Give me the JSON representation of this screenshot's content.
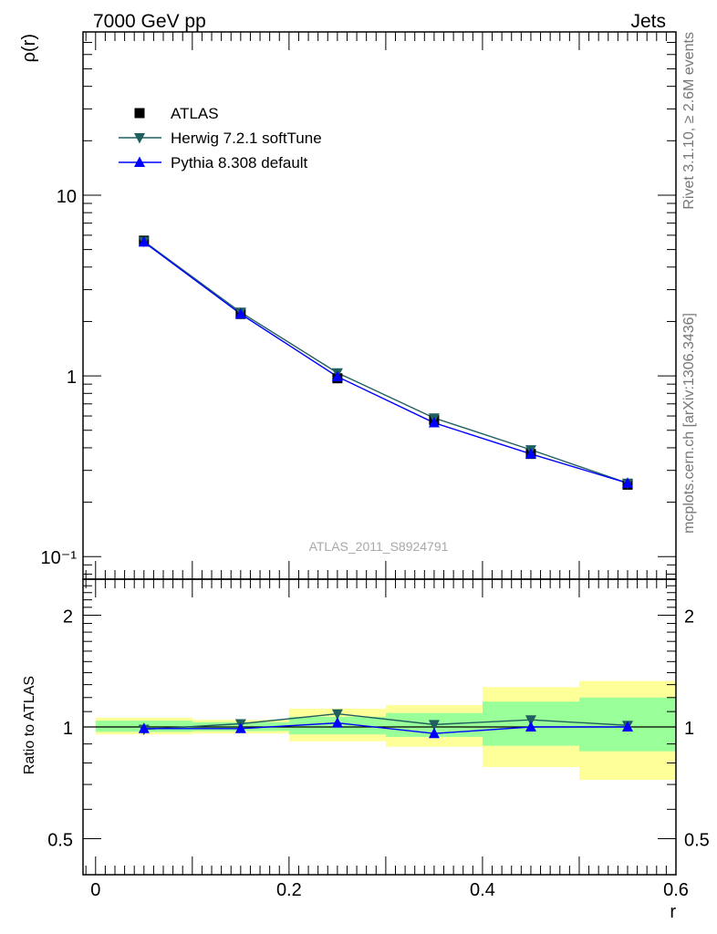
{
  "header": {
    "left_title": "7000 GeV pp",
    "right_title": "Jets"
  },
  "side_labels": {
    "rivet": "Rivet 3.1.10, ≥ 2.6M events",
    "mcplots": "mcplots.cern.ch [arXiv:1306.3436]"
  },
  "watermark": "ATLAS_2011_S8924791",
  "colors": {
    "atlas": "#000000",
    "herwig": "#1f5f5f",
    "pythia": "#0000ff",
    "band_inner": "#99ff99",
    "band_outer": "#ffff99"
  },
  "chart_data": [
    {
      "type": "line",
      "panel": "main",
      "ylabel": "ρ(r)",
      "yscale": "log",
      "xlim": [
        -0.013,
        0.6
      ],
      "ylim": [
        0.075,
        80
      ],
      "ytick_labels": [
        "10",
        "1",
        "10⁻¹"
      ],
      "ytick_values": [
        10,
        1,
        0.1
      ],
      "legend_position": "top-left",
      "x": [
        0.05,
        0.15,
        0.25,
        0.35,
        0.45,
        0.55
      ],
      "series": [
        {
          "name": "ATLAS",
          "marker": "square",
          "values": [
            5.6,
            2.2,
            0.97,
            0.57,
            0.37,
            0.25
          ]
        },
        {
          "name": "Herwig 7.2.1 softTune",
          "marker": "triangle-down",
          "values": [
            5.55,
            2.25,
            1.04,
            0.585,
            0.39,
            0.255
          ]
        },
        {
          "name": "Pythia 8.308 default",
          "marker": "triangle-up",
          "values": [
            5.5,
            2.2,
            0.99,
            0.55,
            0.37,
            0.255
          ]
        }
      ]
    },
    {
      "type": "line",
      "panel": "ratio",
      "xlabel": "r",
      "ylabel": "Ratio to ATLAS",
      "yscale": "log",
      "xlim": [
        -0.013,
        0.6
      ],
      "ylim": [
        0.4,
        2.5
      ],
      "ytick_labels": [
        "2",
        "1",
        "0.5"
      ],
      "ytick_values": [
        2,
        1,
        0.5
      ],
      "xtick_labels": [
        "0",
        "0.2",
        "0.4",
        "0.6"
      ],
      "xtick_values": [
        0,
        0.2,
        0.4,
        0.6
      ],
      "x": [
        0.05,
        0.15,
        0.25,
        0.35,
        0.45,
        0.55
      ],
      "bin_edges": [
        0,
        0.1,
        0.2,
        0.3,
        0.4,
        0.5,
        0.6
      ],
      "band_inner": [
        [
          0.97,
          1.04
        ],
        [
          0.975,
          1.03
        ],
        [
          0.955,
          1.065
        ],
        [
          0.94,
          1.09
        ],
        [
          0.89,
          1.17
        ],
        [
          0.86,
          1.2
        ]
      ],
      "band_outer": [
        [
          0.955,
          1.06
        ],
        [
          0.96,
          1.045
        ],
        [
          0.915,
          1.12
        ],
        [
          0.885,
          1.145
        ],
        [
          0.78,
          1.28
        ],
        [
          0.72,
          1.33
        ]
      ],
      "series": [
        {
          "name": "Herwig 7.2.1 softTune",
          "marker": "triangle-down",
          "values": [
            0.985,
            1.02,
            1.085,
            1.015,
            1.045,
            1.01
          ]
        },
        {
          "name": "Pythia 8.308 default",
          "marker": "triangle-up",
          "values": [
            0.99,
            0.99,
            1.025,
            0.96,
            1.0,
            1.0
          ]
        }
      ]
    }
  ]
}
